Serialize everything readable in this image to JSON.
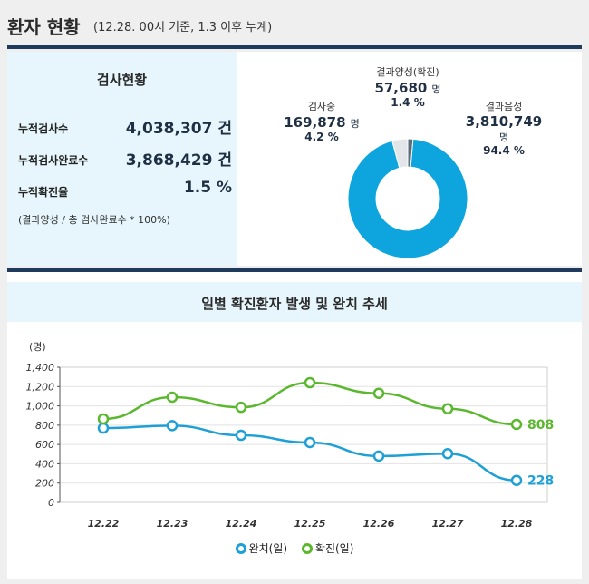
{
  "header": {
    "title": "환자 현황",
    "subtitle": "(12.28. 00시 기준, 1.3 이후 누계)"
  },
  "stats": {
    "title": "검사현황",
    "rows": [
      {
        "label": "누적검사수",
        "value": "4,038,307 건"
      },
      {
        "label": "누적검사완료수",
        "value": "3,868,429 건"
      },
      {
        "label": "누적확진율",
        "value": "1.5 %"
      }
    ],
    "note": "(결과양성 / 총 검사완료수 * 100%)"
  },
  "donut": {
    "positive": {
      "caption": "결과양성(확진)",
      "value": "57,680",
      "unit": "명",
      "pct": "1.4 %"
    },
    "testing": {
      "caption": "검사중",
      "value": "169,878",
      "unit": "명",
      "pct": "4.2 %"
    },
    "negative": {
      "caption": "결과음성",
      "value": "3,810,749",
      "unit": "명",
      "pct": "94.4 %"
    },
    "colors": {
      "positive": "#5a6b7c",
      "testing": "#e3e6e8",
      "negative": "#0ea5de"
    }
  },
  "chart": {
    "title": "일별 확진환자 발생 및 완치 추세"
  },
  "chart_data": {
    "type": "line",
    "title": "일별 확진환자 발생 및 완치 추세",
    "ylabel": "(명)",
    "categories": [
      "12.22",
      "12.23",
      "12.24",
      "12.25",
      "12.26",
      "12.27",
      "12.28"
    ],
    "yticks": [
      "0",
      "200",
      "400",
      "600",
      "800",
      "1,000",
      "1,200",
      "1,400"
    ],
    "ylim": [
      0,
      1400
    ],
    "series": [
      {
        "name": "완치(일)",
        "color": "#1ea0d6",
        "values": [
          770,
          795,
          695,
          620,
          480,
          505,
          228
        ],
        "last_label": "228"
      },
      {
        "name": "확진(일)",
        "color": "#5bb82e",
        "values": [
          865,
          1090,
          985,
          1240,
          1130,
          970,
          808
        ],
        "last_label": "808"
      }
    ],
    "legend": "bottom"
  }
}
